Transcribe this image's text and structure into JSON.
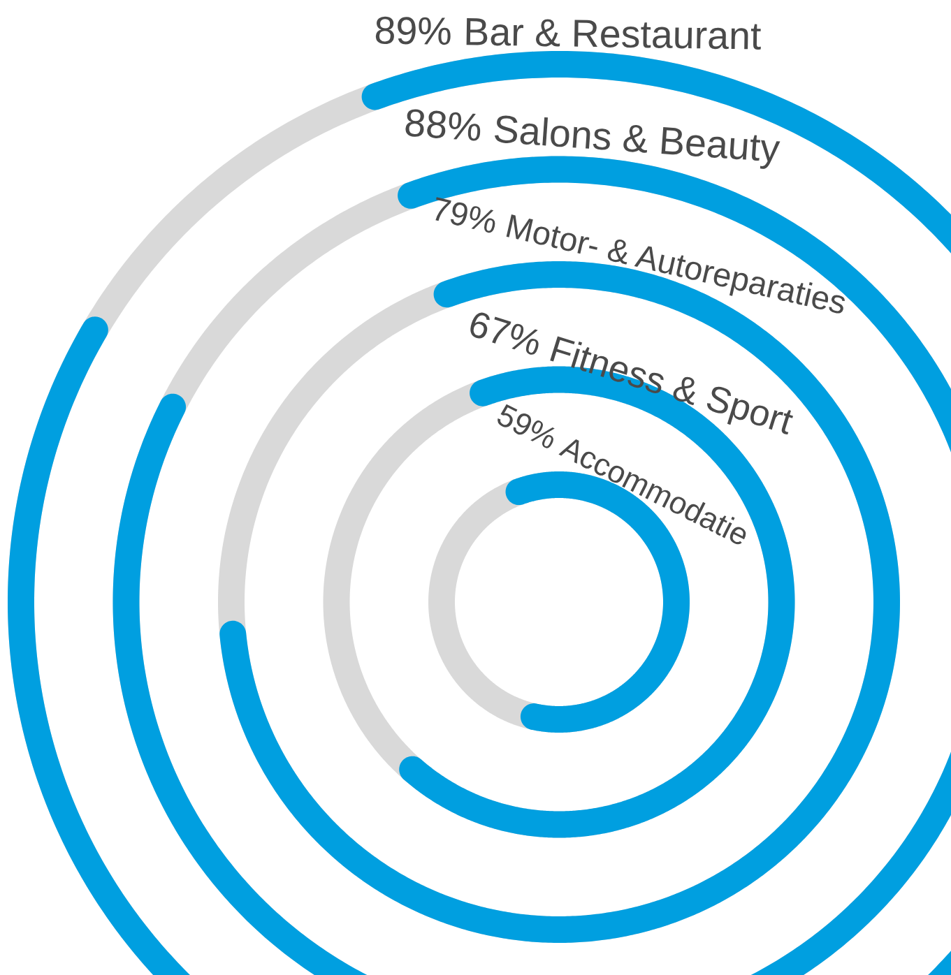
{
  "chart_data": {
    "type": "other",
    "categories": [
      "Bar & Restaurant",
      "Salons & Beauty",
      "Motor- & Autoreparaties",
      "Fitness & Sport",
      "Accommodatie"
    ],
    "values": [
      89,
      88,
      79,
      67,
      59
    ],
    "value_labels": [
      "89%",
      "88%",
      "79%",
      "67%",
      "59%"
    ],
    "color": "#009fe0"
  }
}
